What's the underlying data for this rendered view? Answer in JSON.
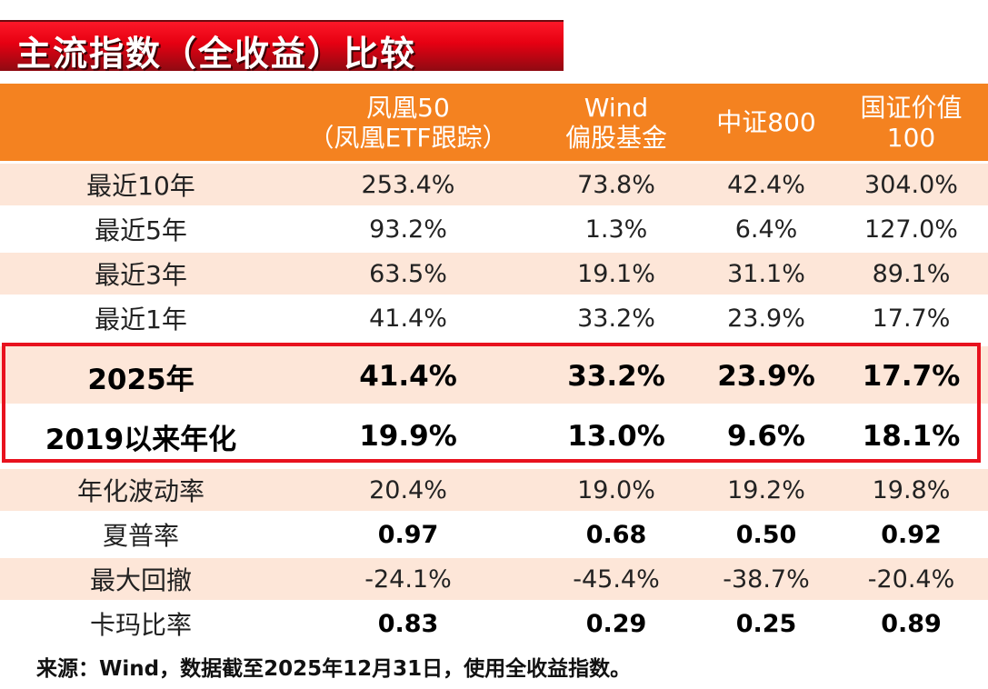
{
  "title": "主流指数（全收益）比较",
  "header": [
    {
      "lines": [
        "",
        ""
      ]
    },
    {
      "lines": [
        "凤凰50",
        "（凤凰ETF跟踪）"
      ]
    },
    {
      "lines": [
        "Wind",
        "偏股基金"
      ]
    },
    {
      "lines": [
        "中证800",
        ""
      ]
    },
    {
      "lines": [
        "国证价值",
        "100"
      ]
    }
  ],
  "rows": [
    {
      "label": "最近10年",
      "values": [
        "253.4%",
        "73.8%",
        "42.4%",
        "304.0%"
      ]
    },
    {
      "label": "最近5年",
      "values": [
        "93.2%",
        "1.3%",
        "6.4%",
        "127.0%"
      ]
    },
    {
      "label": "最近3年",
      "values": [
        "63.5%",
        "19.1%",
        "31.1%",
        "89.1%"
      ]
    },
    {
      "label": "最近1年",
      "values": [
        "41.4%",
        "33.2%",
        "23.9%",
        "17.7%"
      ]
    },
    {
      "label": "2025年",
      "values": [
        "41.4%",
        "33.2%",
        "23.9%",
        "17.7%"
      ]
    },
    {
      "label": "2019以来年化",
      "values": [
        "19.9%",
        "13.0%",
        "9.6%",
        "18.1%"
      ]
    },
    {
      "label": "年化波动率",
      "values": [
        "20.4%",
        "19.0%",
        "19.2%",
        "19.8%"
      ]
    },
    {
      "label": "夏普率",
      "values": [
        "0.97",
        "0.68",
        "0.50",
        "0.92"
      ]
    },
    {
      "label": "最大回撤",
      "values": [
        "-24.1%",
        "-45.4%",
        "-38.7%",
        "-20.4%"
      ]
    },
    {
      "label": "卡玛比率",
      "values": [
        "0.83",
        "0.29",
        "0.25",
        "0.89"
      ]
    }
  ],
  "source_note": "来源：Wind，数据截至2025年12月31日，使用全收益指数。",
  "colors": {
    "header_bg": "#f48220",
    "title_bg": "#e60012",
    "highlight_border": "#e8121e",
    "stripe": "#fde6d8"
  }
}
